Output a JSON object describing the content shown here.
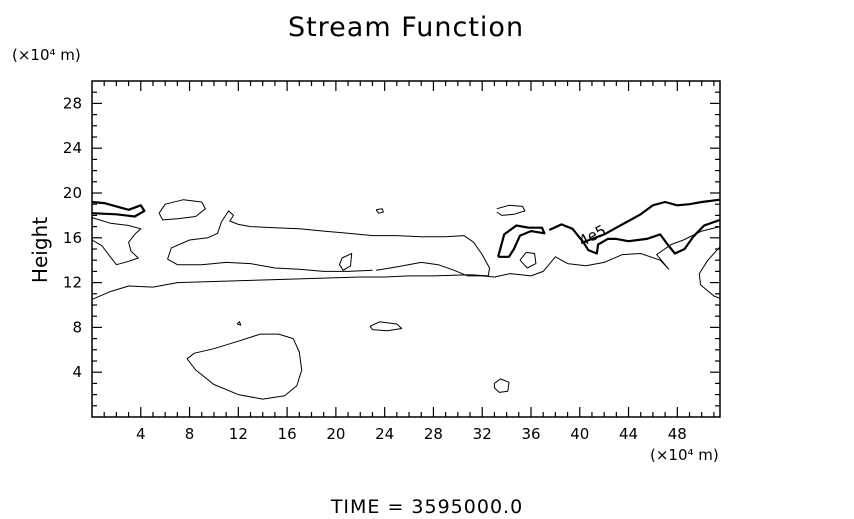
{
  "chart_data": {
    "type": "contour",
    "title": "Stream Function",
    "ylabel": "Height",
    "y_unit": "(×10⁴ m)",
    "x_unit": "(×10⁴ m)",
    "footer": "TIME  =  3595000.0",
    "xlim": [
      0,
      51.5
    ],
    "ylim": [
      0,
      30
    ],
    "x_ticks": [
      4,
      8,
      12,
      16,
      20,
      24,
      28,
      32,
      36,
      40,
      44,
      48
    ],
    "y_ticks": [
      4,
      8,
      12,
      16,
      20,
      24,
      28
    ],
    "contour_label": "4e5",
    "contours": [
      {
        "level": "thick",
        "points": [
          [
            0,
            19.2
          ],
          [
            1,
            19.1
          ],
          [
            2,
            18.8
          ],
          [
            3,
            18.5
          ],
          [
            4,
            18.9
          ],
          [
            4.3,
            18.4
          ],
          [
            3.5,
            17.9
          ],
          [
            2,
            18.1
          ],
          [
            0,
            18.2
          ]
        ]
      },
      {
        "level": "thin",
        "points": [
          [
            0,
            17.8
          ],
          [
            1.5,
            17.3
          ],
          [
            3,
            17.1
          ],
          [
            4,
            16.8
          ],
          [
            3.5,
            16.3
          ],
          [
            3,
            15.6
          ],
          [
            3.2,
            14.8
          ],
          [
            3.8,
            14.2
          ],
          [
            3,
            13.9
          ],
          [
            2,
            13.6
          ],
          [
            1.5,
            14.3
          ],
          [
            0.8,
            15.3
          ],
          [
            0,
            15.8
          ]
        ]
      },
      {
        "level": "thin",
        "points": [
          [
            0,
            10.5
          ],
          [
            1.5,
            11.2
          ],
          [
            3,
            11.7
          ],
          [
            5,
            11.6
          ],
          [
            7,
            12.0
          ],
          [
            10,
            12.1
          ],
          [
            13,
            12.2
          ],
          [
            16,
            12.3
          ],
          [
            19,
            12.4
          ],
          [
            22,
            12.5
          ],
          [
            24,
            12.5
          ],
          [
            26,
            12.6
          ],
          [
            28,
            12.6
          ],
          [
            31,
            12.7
          ],
          [
            32.5,
            12.6
          ],
          [
            32.6,
            13.3
          ],
          [
            32,
            14.5
          ],
          [
            31.3,
            15.6
          ],
          [
            30.5,
            16.2
          ],
          [
            29,
            16.1
          ],
          [
            27,
            16.1
          ],
          [
            25,
            16.2
          ],
          [
            23,
            16.2
          ],
          [
            21,
            16.4
          ],
          [
            19,
            16.6
          ],
          [
            17,
            16.8
          ],
          [
            15,
            16.9
          ],
          [
            13,
            17.0
          ],
          [
            12,
            17.2
          ],
          [
            11.3,
            17.5
          ],
          [
            11.6,
            18.0
          ],
          [
            11.2,
            18.4
          ],
          [
            10.6,
            17.4
          ],
          [
            10.3,
            16.4
          ],
          [
            9.5,
            16.0
          ],
          [
            8,
            15.8
          ],
          [
            6.5,
            15.1
          ],
          [
            6.2,
            14.1
          ],
          [
            7,
            13.6
          ],
          [
            9,
            13.6
          ],
          [
            11,
            13.8
          ],
          [
            13,
            13.7
          ],
          [
            15,
            13.3
          ],
          [
            17,
            13.2
          ],
          [
            19,
            13.0
          ],
          [
            21,
            13.0
          ],
          [
            23,
            13.1
          ]
        ]
      },
      {
        "level": "thin",
        "points": [
          [
            5.5,
            18.2
          ],
          [
            6,
            19.0
          ],
          [
            7.5,
            19.4
          ],
          [
            9,
            19.2
          ],
          [
            9.3,
            18.6
          ],
          [
            8.5,
            17.9
          ],
          [
            7,
            17.7
          ],
          [
            5.8,
            17.6
          ],
          [
            5.5,
            18.2
          ]
        ]
      },
      {
        "level": "thin",
        "points": [
          [
            20.5,
            14.2
          ],
          [
            21.3,
            14.6
          ],
          [
            21.2,
            13.5
          ],
          [
            20.6,
            13.1
          ],
          [
            20.3,
            13.6
          ],
          [
            20.5,
            14.2
          ]
        ]
      },
      {
        "level": "thin",
        "points": [
          [
            23.3,
            18.5
          ],
          [
            23.8,
            18.6
          ],
          [
            23.9,
            18.3
          ],
          [
            23.5,
            18.2
          ],
          [
            23.3,
            18.5
          ]
        ]
      },
      {
        "level": "thin",
        "points": [
          [
            33.2,
            18.6
          ],
          [
            34.2,
            18.9
          ],
          [
            35.3,
            18.8
          ],
          [
            35.5,
            18.4
          ],
          [
            34.6,
            18.1
          ],
          [
            33.6,
            18.0
          ],
          [
            33.2,
            18.3
          ]
        ]
      },
      {
        "level": "thick",
        "points": [
          [
            33.3,
            14.3
          ],
          [
            33.8,
            16.3
          ],
          [
            34.8,
            17.1
          ],
          [
            35.8,
            16.9
          ],
          [
            36.9,
            16.9
          ],
          [
            37.1,
            16.4
          ],
          [
            36,
            16.6
          ],
          [
            35.1,
            16.2
          ],
          [
            34.6,
            15.0
          ],
          [
            34.2,
            14.3
          ],
          [
            33.3,
            14.3
          ]
        ]
      },
      {
        "level": "thin",
        "points": [
          [
            35.1,
            14.0
          ],
          [
            35.6,
            14.7
          ],
          [
            36.3,
            14.6
          ],
          [
            36.4,
            13.7
          ],
          [
            35.7,
            13.3
          ],
          [
            35.1,
            14.0
          ]
        ]
      },
      {
        "level": "thick",
        "points": [
          [
            37.5,
            16.7
          ],
          [
            38.5,
            17.2
          ],
          [
            39.4,
            16.8
          ],
          [
            40.3,
            15.6
          ],
          [
            41,
            15.9
          ],
          [
            42,
            16.3
          ],
          [
            43,
            16.9
          ],
          [
            44,
            17.5
          ],
          [
            45,
            18.1
          ],
          [
            46,
            18.9
          ],
          [
            47,
            19.2
          ],
          [
            48,
            18.9
          ],
          [
            49,
            19.0
          ],
          [
            50,
            19.2
          ],
          [
            51.5,
            19.4
          ]
        ]
      },
      {
        "level": "thick",
        "points": [
          [
            40.3,
            15.6
          ],
          [
            40.7,
            14.9
          ],
          [
            41.4,
            14.6
          ],
          [
            41.5,
            15.4
          ],
          [
            42.3,
            15.9
          ],
          [
            43,
            15.9
          ],
          [
            44,
            15.7
          ],
          [
            45.5,
            15.9
          ],
          [
            46.6,
            16.3
          ],
          [
            47.2,
            15.4
          ],
          [
            47.8,
            14.6
          ],
          [
            48.6,
            15.0
          ],
          [
            49.3,
            16.1
          ],
          [
            50.2,
            17.1
          ],
          [
            51.5,
            17.6
          ]
        ]
      },
      {
        "level": "thin",
        "points": [
          [
            23.3,
            13.1
          ],
          [
            25,
            13.4
          ],
          [
            27,
            13.8
          ],
          [
            28.4,
            13.6
          ],
          [
            29.7,
            13.1
          ],
          [
            30.8,
            12.6
          ],
          [
            32,
            12.6
          ],
          [
            33,
            12.5
          ],
          [
            34.3,
            12.8
          ],
          [
            36,
            12.6
          ],
          [
            37,
            13.0
          ],
          [
            38,
            14.3
          ],
          [
            39,
            13.7
          ],
          [
            40.5,
            13.5
          ],
          [
            42,
            13.8
          ],
          [
            43.5,
            14.5
          ],
          [
            45,
            14.6
          ],
          [
            46.6,
            14.0
          ],
          [
            47.3,
            13.2
          ],
          [
            46.3,
            14.5
          ],
          [
            47.5,
            15.4
          ],
          [
            48.5,
            15.8
          ],
          [
            50,
            16.6
          ],
          [
            51.5,
            17.0
          ]
        ]
      },
      {
        "level": "thin",
        "points": [
          [
            51.5,
            15.2
          ],
          [
            50.5,
            14.0
          ],
          [
            49.8,
            12.8
          ],
          [
            49.9,
            11.8
          ],
          [
            51,
            10.8
          ],
          [
            51.5,
            10.6
          ]
        ]
      },
      {
        "level": "thin",
        "points": [
          [
            22.8,
            8.1
          ],
          [
            23.6,
            8.5
          ],
          [
            25,
            8.3
          ],
          [
            25.4,
            7.9
          ],
          [
            24.2,
            7.7
          ],
          [
            23,
            7.8
          ],
          [
            22.8,
            8.1
          ]
        ]
      },
      {
        "level": "thin",
        "points": [
          [
            7.8,
            5.2
          ],
          [
            8.5,
            4.2
          ],
          [
            10,
            2.9
          ],
          [
            12,
            2.0
          ],
          [
            14,
            1.6
          ],
          [
            15.8,
            1.9
          ],
          [
            16.8,
            2.8
          ],
          [
            17.2,
            4.2
          ],
          [
            17,
            5.8
          ],
          [
            16.5,
            7.0
          ],
          [
            15.3,
            7.4
          ],
          [
            13.8,
            7.4
          ],
          [
            12.1,
            6.8
          ],
          [
            10,
            6.1
          ],
          [
            8.4,
            5.7
          ],
          [
            7.8,
            5.2
          ]
        ]
      },
      {
        "level": "thin",
        "points": [
          [
            33,
            3.0
          ],
          [
            33.5,
            3.4
          ],
          [
            34.2,
            3.1
          ],
          [
            34.1,
            2.3
          ],
          [
            33.4,
            2.2
          ],
          [
            33,
            2.6
          ],
          [
            33,
            3.0
          ]
        ]
      },
      {
        "level": "thin",
        "points": [
          [
            11.9,
            8.3
          ],
          [
            12.1,
            8.5
          ],
          [
            12.2,
            8.2
          ],
          [
            11.9,
            8.3
          ]
        ]
      }
    ]
  }
}
